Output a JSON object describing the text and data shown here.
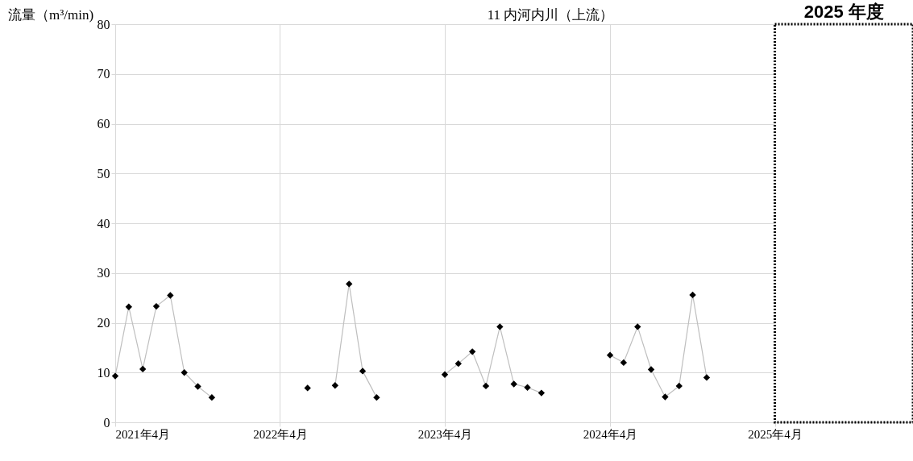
{
  "chart_data": {
    "type": "line",
    "title": "11 内河内川（上流）",
    "ylabel": "流量（m³/min)",
    "x": [
      "2021-04",
      "2021-05",
      "2021-06",
      "2021-07",
      "2021-08",
      "2021-09",
      "2021-10",
      "2021-11",
      "2021-12",
      "2022-06",
      "2022-07",
      "2022-08",
      "2022-09",
      "2022-10",
      "2022-11",
      "2022-12",
      "2023-04",
      "2023-05",
      "2023-06",
      "2023-07",
      "2023-08",
      "2023-09",
      "2023-10",
      "2023-11",
      "2023-12",
      "2024-04",
      "2024-05",
      "2024-06",
      "2024-07",
      "2024-08",
      "2024-09",
      "2024-10",
      "2024-11"
    ],
    "series": [
      {
        "color": "#000000",
        "values": [
          9.3,
          23.2,
          10.7,
          23.3,
          25.5,
          10.0,
          7.2,
          5.0,
          null,
          6.9,
          null,
          7.4,
          27.8,
          10.3,
          5.0,
          null,
          9.6,
          11.8,
          14.2,
          7.3,
          19.2,
          7.7,
          7.0,
          5.9,
          null,
          13.5,
          12.0,
          19.2,
          10.6,
          5.1,
          7.3,
          25.6,
          9.0
        ]
      }
    ],
    "marker": "diamond",
    "line_style": "solid",
    "grid": true,
    "legend": false,
    "xlim": [
      "2021-04",
      "2026-02"
    ],
    "xticks": [
      {
        "value": "2021-04",
        "label": "2021年4月"
      },
      {
        "value": "2022-04",
        "label": "2022年4月"
      },
      {
        "value": "2023-04",
        "label": "2023年4月"
      },
      {
        "value": "2024-04",
        "label": "2024年4月"
      },
      {
        "value": "2025-04",
        "label": "2025年4月"
      }
    ],
    "ylim": [
      0,
      80
    ],
    "yticks": [
      0,
      10,
      20,
      30,
      40,
      50,
      60,
      70,
      80
    ],
    "bands": [
      {
        "axis": "x",
        "from": "2025-04",
        "to": "2026-02",
        "label": "2025 年度",
        "color": "#ffffff"
      }
    ]
  }
}
